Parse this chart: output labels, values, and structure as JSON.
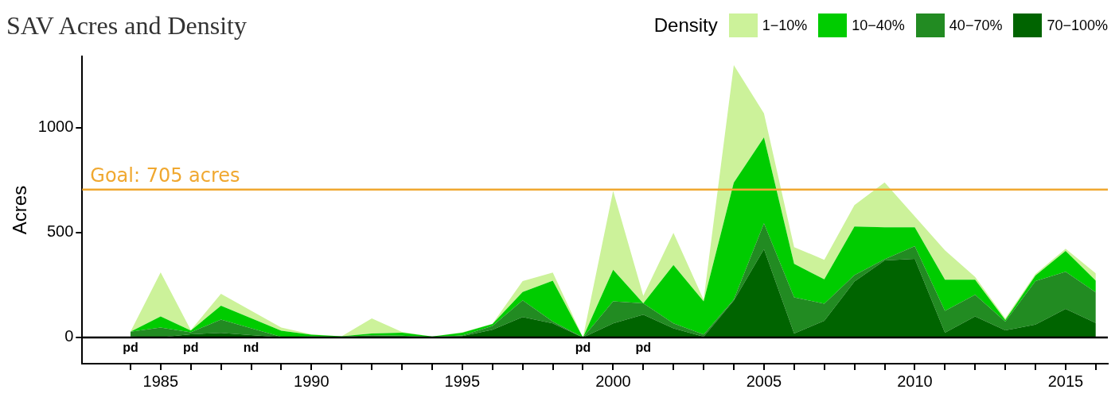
{
  "chart_data": {
    "type": "area",
    "title": "SAV Acres and Density",
    "ylabel": "Acres",
    "legend_title": "Density",
    "legend": "top right",
    "stacked": true,
    "grid": false,
    "x": [
      1984,
      1985,
      1986,
      1987,
      1988,
      1989,
      1990,
      1991,
      1992,
      1993,
      1994,
      1995,
      1996,
      1997,
      1998,
      1999,
      2000,
      2001,
      2002,
      2003,
      2004,
      2005,
      2006,
      2007,
      2008,
      2009,
      2010,
      2011,
      2012,
      2013,
      2014,
      2015,
      2016
    ],
    "series": [
      {
        "name": "70−100%",
        "color": "#006400",
        "values": [
          5,
          1,
          15,
          22,
          null,
          1,
          2,
          2,
          3,
          2,
          2,
          7,
          37,
          97,
          67,
          0,
          67,
          109,
          43,
          4,
          176,
          421,
          19,
          79,
          267,
          367,
          375,
          23,
          100,
          34,
          61,
          136,
          69
        ],
        "value_labels": [
          "pd",
          null,
          "pd",
          null,
          "nd",
          null,
          null,
          null,
          null,
          null,
          null,
          null,
          null,
          null,
          null,
          "pd",
          null,
          "pd",
          null,
          null,
          null,
          null,
          null,
          null,
          null,
          null,
          null,
          null,
          null,
          null,
          null,
          null,
          null
        ]
      },
      {
        "name": "40−70%",
        "color": "#228b22",
        "values": [
          22,
          46,
          10,
          63,
          null,
          2,
          3,
          2,
          7,
          6,
          1,
          2,
          18,
          80,
          9,
          0,
          105,
          54,
          24,
          10,
          5,
          123,
          172,
          82,
          30,
          6,
          60,
          104,
          103,
          42,
          208,
          177,
          146
        ]
      },
      {
        "name": "10−40%",
        "color": "#00cc00",
        "values": [
          0,
          53,
          8,
          66,
          null,
          29,
          8,
          2,
          9,
          15,
          2,
          14,
          9,
          40,
          195,
          0,
          151,
          0,
          278,
          158,
          557,
          410,
          160,
          116,
          232,
          152,
          90,
          148,
          72,
          7,
          26,
          100,
          56
        ]
      },
      {
        "name": "1−10%",
        "color": "#ccf29a",
        "values": [
          0,
          210,
          2,
          57,
          null,
          15,
          2,
          0,
          72,
          3,
          0,
          2,
          1,
          52,
          38,
          0,
          376,
          36,
          154,
          8,
          560,
          114,
          80,
          93,
          102,
          214,
          52,
          140,
          14,
          8,
          8,
          10,
          35
        ]
      }
    ],
    "xlim": [
      1982.4,
      2016.4
    ],
    "xticks": [
      {
        "value": 1984,
        "label": null
      },
      {
        "value": 1985,
        "label": "1985"
      },
      {
        "value": 1986,
        "label": null
      },
      {
        "value": 1987,
        "label": null
      },
      {
        "value": 1988,
        "label": null
      },
      {
        "value": 1989,
        "label": null
      },
      {
        "value": 1990,
        "label": "1990"
      },
      {
        "value": 1991,
        "label": null
      },
      {
        "value": 1992,
        "label": null
      },
      {
        "value": 1993,
        "label": null
      },
      {
        "value": 1994,
        "label": null
      },
      {
        "value": 1995,
        "label": "1995"
      },
      {
        "value": 1996,
        "label": null
      },
      {
        "value": 1997,
        "label": null
      },
      {
        "value": 1998,
        "label": null
      },
      {
        "value": 1999,
        "label": null
      },
      {
        "value": 2000,
        "label": "2000"
      },
      {
        "value": 2001,
        "label": null
      },
      {
        "value": 2002,
        "label": null
      },
      {
        "value": 2003,
        "label": null
      },
      {
        "value": 2004,
        "label": null
      },
      {
        "value": 2005,
        "label": "2005"
      },
      {
        "value": 2006,
        "label": null
      },
      {
        "value": 2007,
        "label": null
      },
      {
        "value": 2008,
        "label": null
      },
      {
        "value": 2009,
        "label": null
      },
      {
        "value": 2010,
        "label": "2010"
      },
      {
        "value": 2011,
        "label": null
      },
      {
        "value": 2012,
        "label": null
      },
      {
        "value": 2013,
        "label": null
      },
      {
        "value": 2014,
        "label": null
      },
      {
        "value": 2015,
        "label": "2015"
      },
      {
        "value": 2016,
        "label": null
      }
    ],
    "ylim": [
      -125,
      1340
    ],
    "yticks": [
      0,
      500,
      1000
    ],
    "ref_lines": [
      {
        "axis": "y",
        "value": 705,
        "label": "Goal: 705 acres",
        "color": "#f0a830"
      },
      {
        "axis": "y",
        "value": 0,
        "label": null,
        "color": "#000000"
      }
    ]
  }
}
